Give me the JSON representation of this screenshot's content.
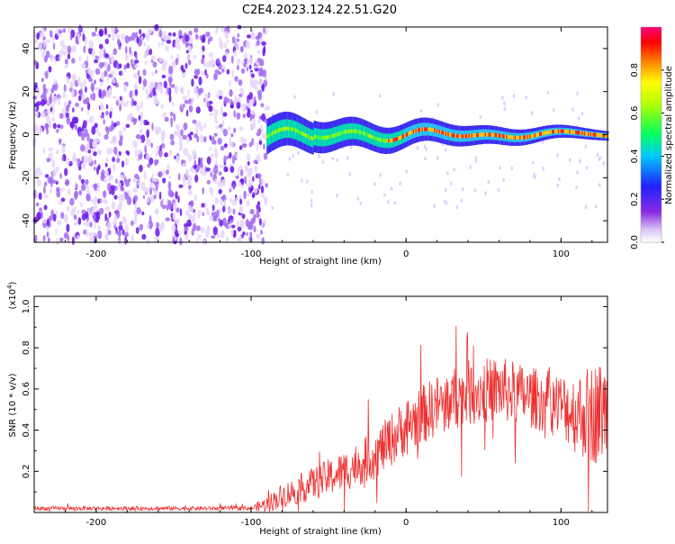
{
  "title": "C2E4.2023.124.22.51.G20",
  "chart_data": [
    {
      "type": "heatmap",
      "xlabel": "Height of straight line (km)",
      "ylabel": "Frequency (Hz)",
      "xlim": [
        -240,
        130
      ],
      "ylim": [
        -50,
        50
      ],
      "xticks": [
        -200,
        -100,
        0,
        100
      ],
      "yticks": [
        -40,
        -20,
        0,
        20,
        40
      ],
      "colorbar": {
        "label": "Normalized spectral amplitude",
        "range": [
          0,
          1
        ],
        "ticks": [
          "0.0",
          "0.2",
          "0.4",
          "0.6",
          "0.8"
        ],
        "tick_values": [
          0.0,
          0.2,
          0.4,
          0.6,
          0.8
        ],
        "colormap": "rainbow"
      },
      "description_regions": [
        {
          "x_range": [
            -240,
            -90
          ],
          "frequency_range": [
            -50,
            50
          ],
          "amplitude": 0.15
        },
        {
          "x_range": [
            -90,
            130
          ],
          "frequency_range": [
            -8,
            8
          ],
          "amplitude": 0.9
        }
      ]
    },
    {
      "type": "line",
      "xlabel": "Height of straight line (km)",
      "ylabel": "SNR (10 * v/v)",
      "y_multiplier": "(x10",
      "y_multiplier_exp": "4",
      "y_multiplier_close": ")",
      "xlim": [
        -240,
        130
      ],
      "ylim": [
        0,
        1.05
      ],
      "xticks": [
        -200,
        -100,
        0,
        100
      ],
      "yticks": [
        0.2,
        0.4,
        0.6,
        0.8,
        1.0
      ],
      "ytick_labels": [
        "0.2",
        "0.4",
        "0.6",
        "0.8",
        "1.0"
      ],
      "color": "#f03030",
      "trend": {
        "x": [
          -240,
          -100,
          -90,
          -80,
          -60,
          -40,
          -20,
          -10,
          0,
          20,
          40,
          60,
          80,
          100,
          110,
          120,
          130
        ],
        "y": [
          0.02,
          0.02,
          0.04,
          0.08,
          0.14,
          0.2,
          0.28,
          0.35,
          0.42,
          0.52,
          0.58,
          0.6,
          0.56,
          0.52,
          0.48,
          0.48,
          0.5
        ],
        "noise": [
          0.01,
          0.01,
          0.04,
          0.06,
          0.08,
          0.1,
          0.12,
          0.13,
          0.14,
          0.15,
          0.16,
          0.16,
          0.15,
          0.16,
          0.2,
          0.25,
          0.25
        ]
      }
    }
  ]
}
